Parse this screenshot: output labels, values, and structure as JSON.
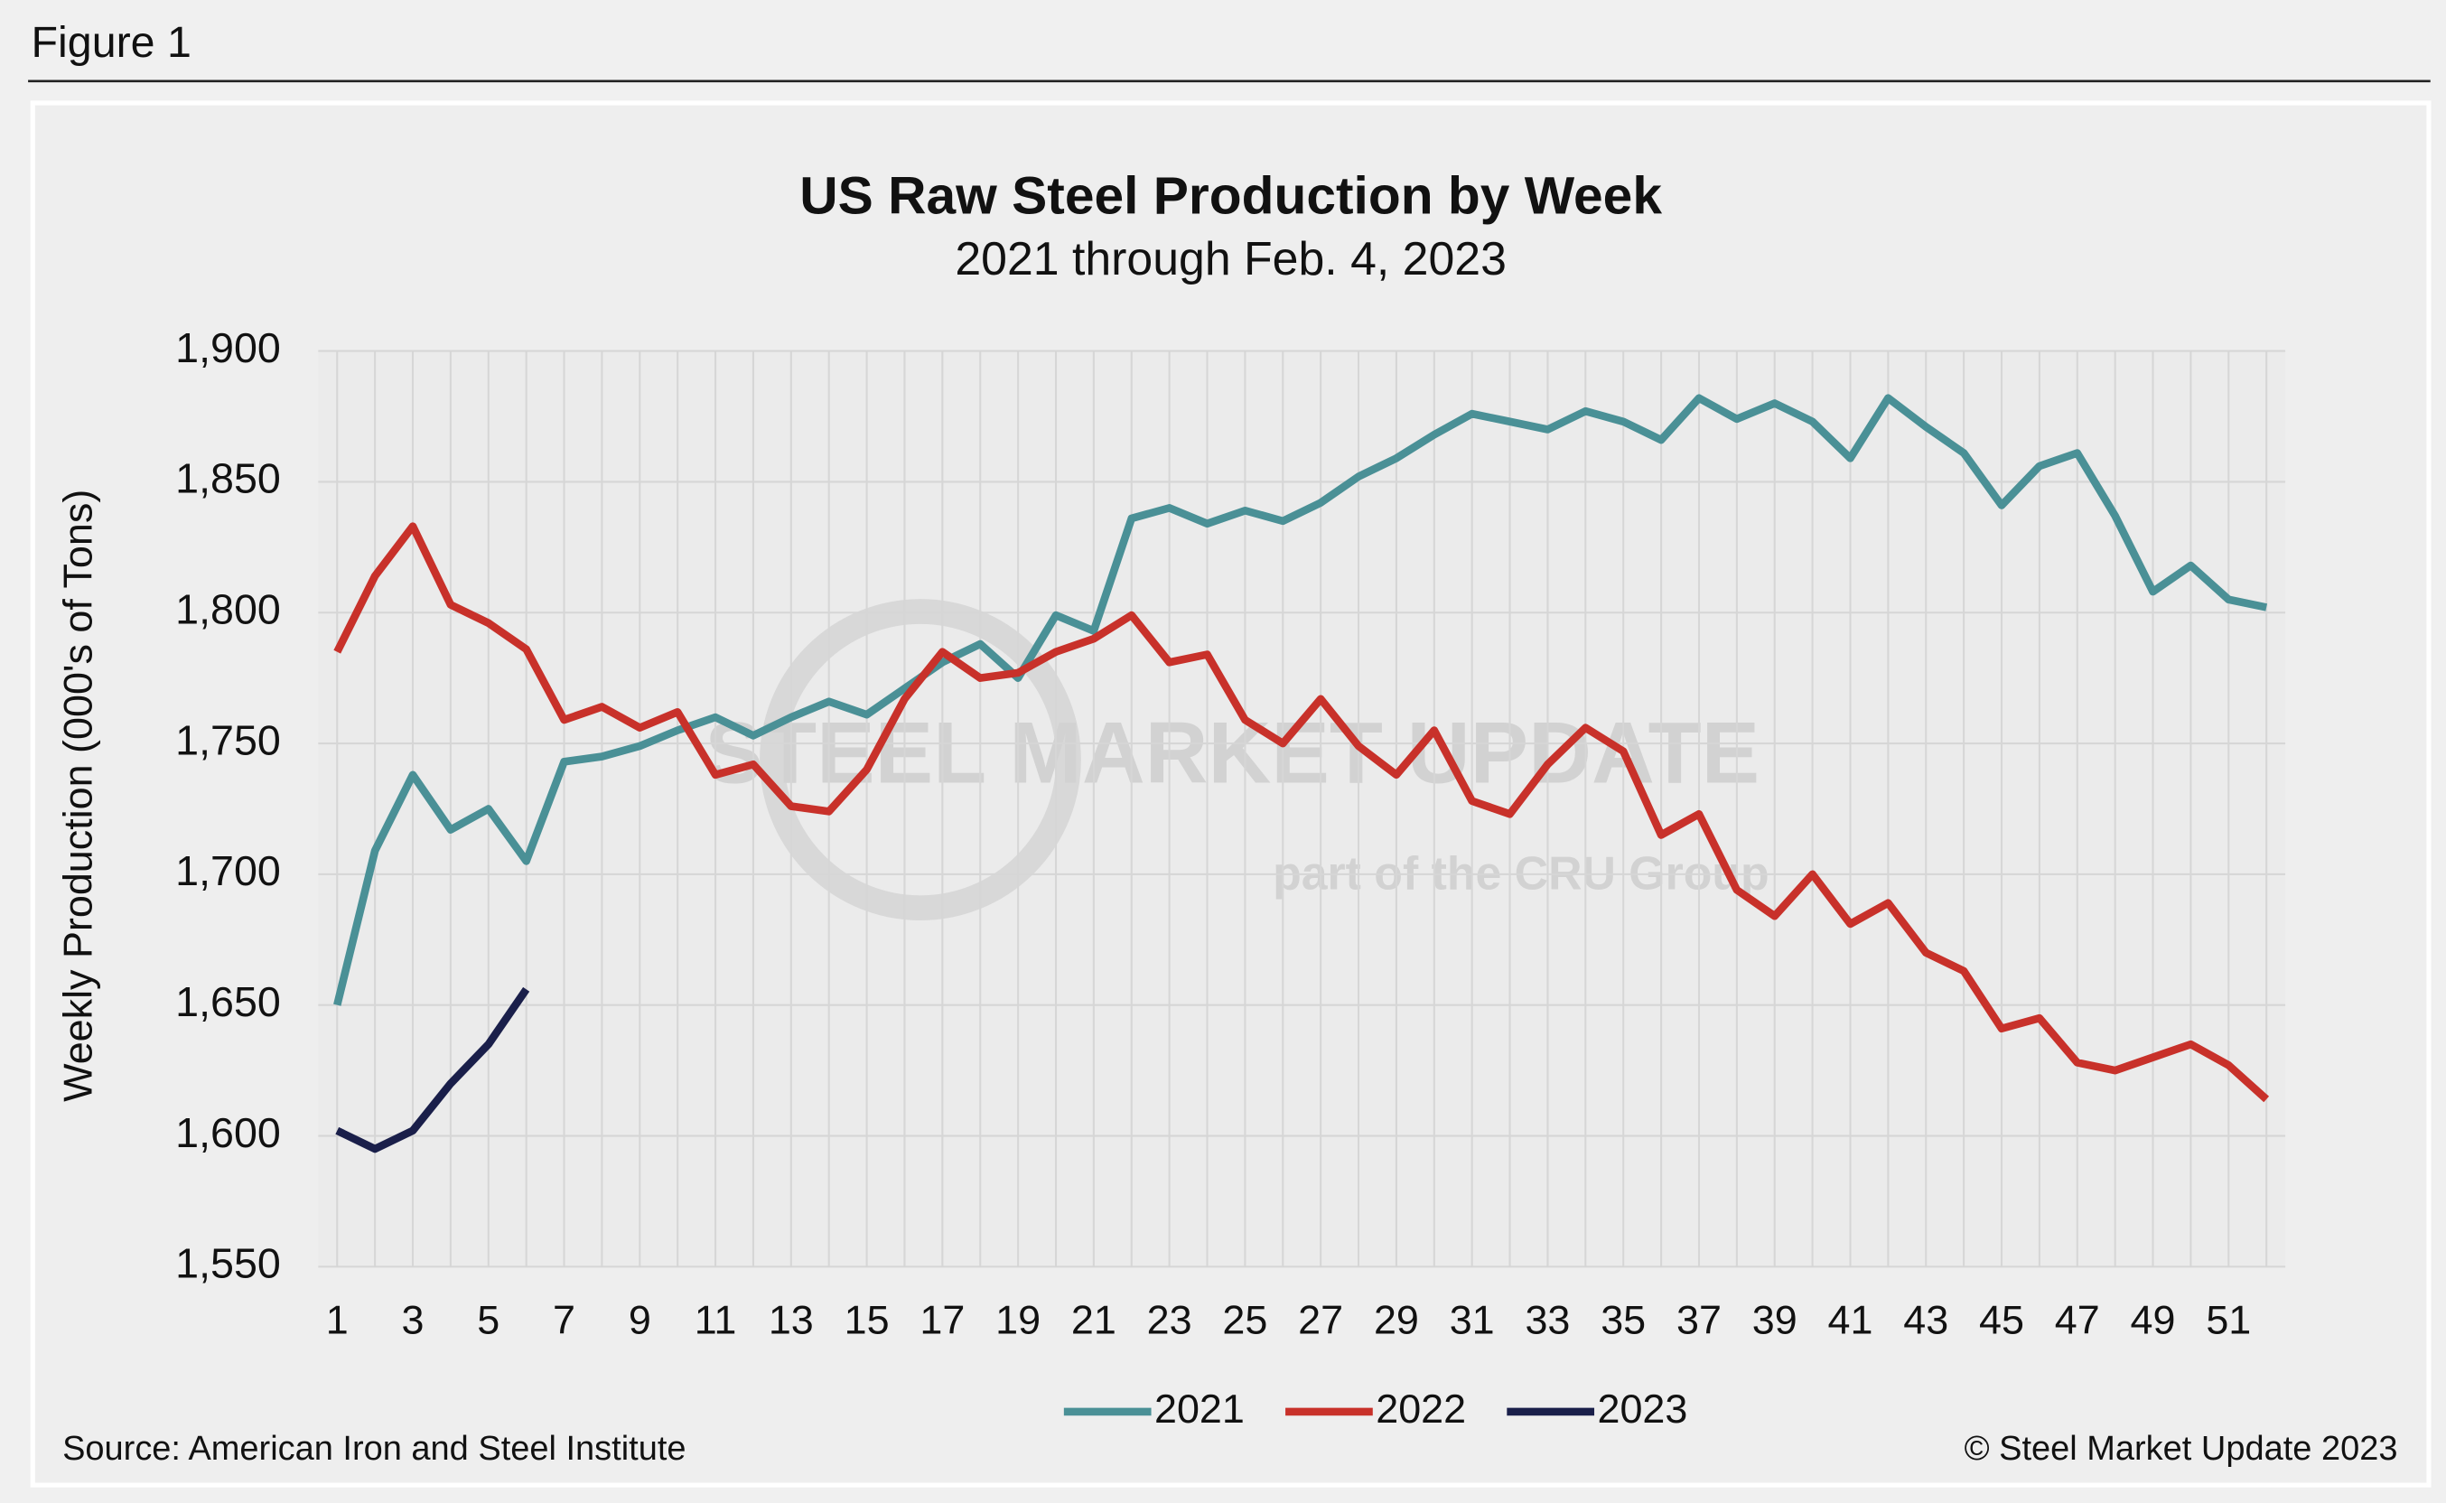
{
  "figure_label": "Figure 1",
  "chart_data": {
    "type": "line",
    "title": "US Raw Steel Production by Week",
    "subtitle": "2021 through Feb. 4, 2023",
    "y_label": "Weekly Production (000's of Tons)",
    "source": "Source: American Iron and Steel Institute",
    "copyright": "© Steel Market Update 2023",
    "watermark": [
      "STEEL MARKET UPDATE",
      "part of the CRU Group"
    ],
    "x": [
      1,
      2,
      3,
      4,
      5,
      6,
      7,
      8,
      9,
      10,
      11,
      12,
      13,
      14,
      15,
      16,
      17,
      18,
      19,
      20,
      21,
      22,
      23,
      24,
      25,
      26,
      27,
      28,
      29,
      30,
      31,
      32,
      33,
      34,
      35,
      36,
      37,
      38,
      39,
      40,
      41,
      42,
      43,
      44,
      45,
      46,
      47,
      48,
      49,
      50,
      51,
      52
    ],
    "xlim": [
      0.5,
      52.5
    ],
    "xticks": [
      1,
      3,
      5,
      7,
      9,
      11,
      13,
      15,
      17,
      19,
      21,
      23,
      25,
      27,
      29,
      31,
      33,
      35,
      37,
      39,
      41,
      43,
      45,
      47,
      49,
      51
    ],
    "ylim": [
      1550,
      1900
    ],
    "yticks": [
      {
        "value": 1550,
        "label": "1,550"
      },
      {
        "value": 1600,
        "label": "1,600"
      },
      {
        "value": 1650,
        "label": "1,650"
      },
      {
        "value": 1700,
        "label": "1,700"
      },
      {
        "value": 1750,
        "label": "1,750"
      },
      {
        "value": 1800,
        "label": "1,800"
      },
      {
        "value": 1850,
        "label": "1,850"
      },
      {
        "value": 1900,
        "label": "1,900"
      }
    ],
    "grid": true,
    "legend": "bottom",
    "series": [
      {
        "name": "2021",
        "color": "#4a9096",
        "values": [
          1650,
          1709,
          1738,
          1717,
          1725,
          1705,
          1743,
          1745,
          1749,
          1755,
          1760,
          1753,
          1760,
          1766,
          1761,
          1771,
          1781,
          1788,
          1775,
          1799,
          1793,
          1836,
          1840,
          1834,
          1839,
          1835,
          1842,
          1852,
          1859,
          1868,
          1876,
          1873,
          1870,
          1877,
          1873,
          1866,
          1882,
          1874,
          1880,
          1873,
          1859,
          1882,
          1871,
          1861,
          1841,
          1856,
          1861,
          1837,
          1808,
          1818,
          1805,
          1802
        ]
      },
      {
        "name": "2022",
        "color": "#c8312a",
        "values": [
          1785,
          1814,
          1833,
          1803,
          1796,
          1786,
          1759,
          1764,
          1756,
          1762,
          1738,
          1742,
          1726,
          1724,
          1740,
          1767,
          1785,
          1775,
          1777,
          1785,
          1790,
          1799,
          1781,
          1784,
          1759,
          1750,
          1767,
          1749,
          1738,
          1755,
          1728,
          1723,
          1742,
          1756,
          1747,
          1715,
          1723,
          1694,
          1684,
          1700,
          1681,
          1689,
          1670,
          1663,
          1641,
          1645,
          1628,
          1625,
          1630,
          1635,
          1627,
          1614
        ]
      },
      {
        "name": "2023",
        "color": "#1a1f4a",
        "values": [
          1602,
          1595,
          1602,
          1620,
          1635,
          1656,
          null,
          null,
          null,
          null,
          null,
          null,
          null,
          null,
          null,
          null,
          null,
          null,
          null,
          null,
          null,
          null,
          null,
          null,
          null,
          null,
          null,
          null,
          null,
          null,
          null,
          null,
          null,
          null,
          null,
          null,
          null,
          null,
          null,
          null,
          null,
          null,
          null,
          null,
          null,
          null,
          null,
          null,
          null,
          null,
          null,
          null
        ]
      }
    ]
  }
}
